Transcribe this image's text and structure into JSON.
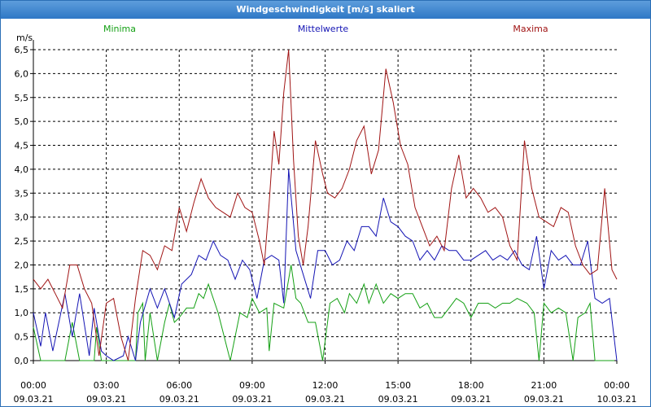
{
  "window": {
    "title": "Windgeschwindigkeit [m/s] skaliert"
  },
  "colors": {
    "minima": "#14a014",
    "mittelwerte": "#1414b4",
    "maxima": "#a01414"
  },
  "chart_data": {
    "type": "line",
    "title": "Windgeschwindigkeit [m/s] skaliert",
    "ylabel": "m/s",
    "xlabel": "",
    "ylim": [
      0,
      6.5
    ],
    "xlim_hours": [
      0,
      24
    ],
    "yticks": [
      "0,0",
      "0,5",
      "1,0",
      "1,5",
      "2,0",
      "2,5",
      "3,0",
      "3,5",
      "4,0",
      "4,5",
      "5,0",
      "5,5",
      "6,0",
      "6,5"
    ],
    "xticks": [
      {
        "time": "00:00",
        "date": "09.03.21"
      },
      {
        "time": "03:00",
        "date": "09.03.21"
      },
      {
        "time": "06:00",
        "date": "09.03.21"
      },
      {
        "time": "09:00",
        "date": "09.03.21"
      },
      {
        "time": "12:00",
        "date": "09.03.21"
      },
      {
        "time": "15:00",
        "date": "09.03.21"
      },
      {
        "time": "18:00",
        "date": "09.03.21"
      },
      {
        "time": "21:00",
        "date": "09.03.21"
      },
      {
        "time": "00:00",
        "date": "10.03.21"
      }
    ],
    "grid": true,
    "series": [
      {
        "name": "Minima",
        "points": [
          [
            0,
            0.7
          ],
          [
            0.3,
            0
          ],
          [
            1.3,
            0
          ],
          [
            1.6,
            0.8
          ],
          [
            1.9,
            0
          ],
          [
            2.5,
            0
          ],
          [
            2.6,
            0.7
          ],
          [
            2.8,
            0
          ],
          [
            4.2,
            0
          ],
          [
            4.3,
            1
          ],
          [
            4.5,
            1.2
          ],
          [
            4.6,
            0
          ],
          [
            4.8,
            1
          ],
          [
            5.1,
            0
          ],
          [
            5.4,
            0.8
          ],
          [
            5.6,
            1.2
          ],
          [
            5.8,
            0.8
          ],
          [
            6.0,
            0.9
          ],
          [
            6.3,
            1.1
          ],
          [
            6.6,
            1.1
          ],
          [
            6.8,
            1.4
          ],
          [
            7.0,
            1.3
          ],
          [
            7.2,
            1.6
          ],
          [
            7.6,
            1
          ],
          [
            8.1,
            0
          ],
          [
            8.5,
            1
          ],
          [
            8.8,
            0.9
          ],
          [
            9.0,
            1.3
          ],
          [
            9.3,
            1
          ],
          [
            9.6,
            1.1
          ],
          [
            9.7,
            0.2
          ],
          [
            9.9,
            1.2
          ],
          [
            10.3,
            1.1
          ],
          [
            10.6,
            2
          ],
          [
            10.8,
            1.3
          ],
          [
            11.0,
            1.2
          ],
          [
            11.3,
            0.8
          ],
          [
            11.6,
            0.8
          ],
          [
            11.9,
            0
          ],
          [
            12.2,
            1.2
          ],
          [
            12.5,
            1.3
          ],
          [
            12.8,
            1
          ],
          [
            13.0,
            1.4
          ],
          [
            13.3,
            1.2
          ],
          [
            13.6,
            1.6
          ],
          [
            13.8,
            1.2
          ],
          [
            14.1,
            1.6
          ],
          [
            14.4,
            1.2
          ],
          [
            14.7,
            1.4
          ],
          [
            15.0,
            1.3
          ],
          [
            15.3,
            1.4
          ],
          [
            15.6,
            1.4
          ],
          [
            15.9,
            1.1
          ],
          [
            16.2,
            1.2
          ],
          [
            16.5,
            0.9
          ],
          [
            16.8,
            0.9
          ],
          [
            17.1,
            1.1
          ],
          [
            17.4,
            1.3
          ],
          [
            17.7,
            1.2
          ],
          [
            18.0,
            0.9
          ],
          [
            18.3,
            1.2
          ],
          [
            18.7,
            1.2
          ],
          [
            19.0,
            1.1
          ],
          [
            19.3,
            1.2
          ],
          [
            19.6,
            1.2
          ],
          [
            19.9,
            1.3
          ],
          [
            20.3,
            1.2
          ],
          [
            20.6,
            1
          ],
          [
            20.8,
            0
          ],
          [
            21.0,
            1.2
          ],
          [
            21.3,
            1.0
          ],
          [
            21.6,
            1.1
          ],
          [
            21.9,
            1.0
          ],
          [
            22.2,
            0
          ],
          [
            22.4,
            0.9
          ],
          [
            22.7,
            1.0
          ],
          [
            22.9,
            1.2
          ],
          [
            23.1,
            0
          ],
          [
            23.9,
            0
          ]
        ]
      },
      {
        "name": "Mittelwerte",
        "points": [
          [
            0,
            1
          ],
          [
            0.3,
            0.3
          ],
          [
            0.5,
            1
          ],
          [
            0.8,
            0.2
          ],
          [
            1.3,
            1.4
          ],
          [
            1.6,
            0.5
          ],
          [
            1.9,
            1.4
          ],
          [
            2.3,
            0.1
          ],
          [
            2.5,
            1.1
          ],
          [
            2.8,
            0.2
          ],
          [
            3.0,
            0.1
          ],
          [
            3.3,
            0
          ],
          [
            3.7,
            0.1
          ],
          [
            3.9,
            0.5
          ],
          [
            4.2,
            0
          ],
          [
            4.4,
            0.8
          ],
          [
            4.8,
            1.5
          ],
          [
            5.1,
            1.1
          ],
          [
            5.4,
            1.5
          ],
          [
            5.8,
            0.9
          ],
          [
            6.1,
            1.6
          ],
          [
            6.5,
            1.8
          ],
          [
            6.8,
            2.2
          ],
          [
            7.1,
            2.1
          ],
          [
            7.4,
            2.5
          ],
          [
            7.7,
            2.2
          ],
          [
            8.0,
            2.1
          ],
          [
            8.3,
            1.7
          ],
          [
            8.6,
            2.1
          ],
          [
            8.9,
            1.9
          ],
          [
            9.2,
            1.3
          ],
          [
            9.5,
            2.1
          ],
          [
            9.8,
            2.2
          ],
          [
            10.1,
            2.1
          ],
          [
            10.3,
            1.2
          ],
          [
            10.5,
            4
          ],
          [
            10.8,
            2.3
          ],
          [
            11.1,
            1.8
          ],
          [
            11.4,
            1.3
          ],
          [
            11.7,
            2.3
          ],
          [
            12.0,
            2.3
          ],
          [
            12.3,
            2.0
          ],
          [
            12.6,
            2.1
          ],
          [
            12.9,
            2.5
          ],
          [
            13.2,
            2.3
          ],
          [
            13.5,
            2.8
          ],
          [
            13.8,
            2.8
          ],
          [
            14.1,
            2.6
          ],
          [
            14.4,
            3.4
          ],
          [
            14.7,
            2.9
          ],
          [
            15.0,
            2.8
          ],
          [
            15.3,
            2.6
          ],
          [
            15.6,
            2.5
          ],
          [
            15.9,
            2.1
          ],
          [
            16.2,
            2.3
          ],
          [
            16.5,
            2.1
          ],
          [
            16.8,
            2.4
          ],
          [
            17.1,
            2.3
          ],
          [
            17.4,
            2.3
          ],
          [
            17.7,
            2.1
          ],
          [
            18.0,
            2.1
          ],
          [
            18.3,
            2.2
          ],
          [
            18.6,
            2.3
          ],
          [
            18.9,
            2.1
          ],
          [
            19.2,
            2.2
          ],
          [
            19.5,
            2.1
          ],
          [
            19.8,
            2.3
          ],
          [
            20.1,
            2.0
          ],
          [
            20.4,
            1.9
          ],
          [
            20.7,
            2.6
          ],
          [
            21.0,
            1.5
          ],
          [
            21.3,
            2.3
          ],
          [
            21.6,
            2.1
          ],
          [
            21.9,
            2.2
          ],
          [
            22.2,
            2.0
          ],
          [
            22.5,
            2.0
          ],
          [
            22.8,
            2.5
          ],
          [
            23.1,
            1.3
          ],
          [
            23.4,
            1.2
          ],
          [
            23.7,
            1.3
          ],
          [
            24.0,
            0
          ]
        ]
      },
      {
        "name": "Maxima",
        "points": [
          [
            0,
            1.7
          ],
          [
            0.3,
            1.5
          ],
          [
            0.6,
            1.7
          ],
          [
            0.9,
            1.4
          ],
          [
            1.2,
            1.1
          ],
          [
            1.5,
            2
          ],
          [
            1.8,
            2.0
          ],
          [
            2.1,
            1.5
          ],
          [
            2.4,
            1.2
          ],
          [
            2.7,
            0.1
          ],
          [
            3.0,
            1.2
          ],
          [
            3.3,
            1.3
          ],
          [
            3.6,
            0.5
          ],
          [
            3.9,
            0
          ],
          [
            4.2,
            1.3
          ],
          [
            4.5,
            2.3
          ],
          [
            4.8,
            2.2
          ],
          [
            5.1,
            1.9
          ],
          [
            5.4,
            2.4
          ],
          [
            5.7,
            2.3
          ],
          [
            6.0,
            3.2
          ],
          [
            6.3,
            2.7
          ],
          [
            6.6,
            3.3
          ],
          [
            6.9,
            3.8
          ],
          [
            7.2,
            3.4
          ],
          [
            7.5,
            3.2
          ],
          [
            7.8,
            3.1
          ],
          [
            8.1,
            3.0
          ],
          [
            8.4,
            3.5
          ],
          [
            8.7,
            3.2
          ],
          [
            9.0,
            3.1
          ],
          [
            9.3,
            2.5
          ],
          [
            9.5,
            2.0
          ],
          [
            9.7,
            3.3
          ],
          [
            9.9,
            4.8
          ],
          [
            10.1,
            4.1
          ],
          [
            10.3,
            5.6
          ],
          [
            10.5,
            6.5
          ],
          [
            10.7,
            4.2
          ],
          [
            10.9,
            2.6
          ],
          [
            11.1,
            2.0
          ],
          [
            11.3,
            2.8
          ],
          [
            11.6,
            4.6
          ],
          [
            11.9,
            3.9
          ],
          [
            12.1,
            3.5
          ],
          [
            12.4,
            3.4
          ],
          [
            12.7,
            3.6
          ],
          [
            13.0,
            4.0
          ],
          [
            13.3,
            4.6
          ],
          [
            13.6,
            4.9
          ],
          [
            13.9,
            3.9
          ],
          [
            14.2,
            4.4
          ],
          [
            14.5,
            6.1
          ],
          [
            14.8,
            5.4
          ],
          [
            15.1,
            4.5
          ],
          [
            15.4,
            4.1
          ],
          [
            15.7,
            3.2
          ],
          [
            16.0,
            2.8
          ],
          [
            16.3,
            2.4
          ],
          [
            16.6,
            2.6
          ],
          [
            16.9,
            2.3
          ],
          [
            17.2,
            3.6
          ],
          [
            17.5,
            4.3
          ],
          [
            17.8,
            3.4
          ],
          [
            18.1,
            3.6
          ],
          [
            18.4,
            3.4
          ],
          [
            18.7,
            3.1
          ],
          [
            19.0,
            3.2
          ],
          [
            19.3,
            3.0
          ],
          [
            19.6,
            2.4
          ],
          [
            19.9,
            2.1
          ],
          [
            20.2,
            4.6
          ],
          [
            20.5,
            3.6
          ],
          [
            20.8,
            3.0
          ],
          [
            21.1,
            2.9
          ],
          [
            21.4,
            2.8
          ],
          [
            21.7,
            3.2
          ],
          [
            22.0,
            3.1
          ],
          [
            22.3,
            2.4
          ],
          [
            22.6,
            2.0
          ],
          [
            22.9,
            1.8
          ],
          [
            23.2,
            1.9
          ],
          [
            23.5,
            3.6
          ],
          [
            23.8,
            1.9
          ],
          [
            24.0,
            1.7
          ]
        ]
      }
    ]
  }
}
